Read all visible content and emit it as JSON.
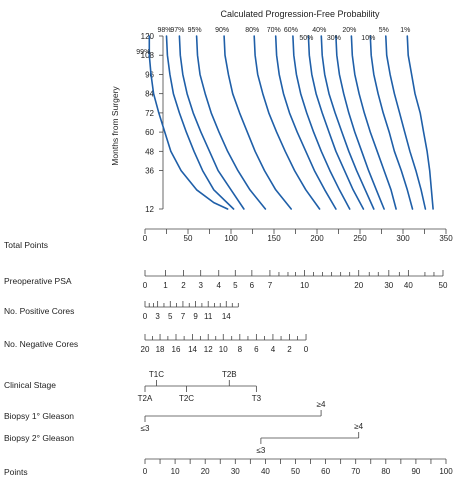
{
  "chart_data": {
    "type": "nomogram",
    "title": "Calculated Progression-Free Probability",
    "curve_color": "#1f5fa8",
    "line_color": "#444444",
    "text_color": "#222222",
    "months_axis": {
      "label": "Months from Surgery",
      "ticks": [
        12,
        36,
        48,
        60,
        72,
        84,
        96,
        108,
        120
      ]
    },
    "curves": [
      {
        "label": "99%",
        "points": [
          [
            120,
            5
          ],
          [
            108,
            5
          ],
          [
            96,
            7
          ],
          [
            84,
            10
          ],
          [
            72,
            16
          ],
          [
            60,
            23
          ],
          [
            48,
            30
          ],
          [
            36,
            42
          ],
          [
            24,
            60
          ],
          [
            16,
            80
          ],
          [
            12,
            96
          ]
        ]
      },
      {
        "label": "98%",
        "points": [
          [
            120,
            25
          ],
          [
            108,
            26
          ],
          [
            96,
            29
          ],
          [
            84,
            33
          ],
          [
            72,
            40
          ],
          [
            60,
            48
          ],
          [
            48,
            57
          ],
          [
            36,
            67
          ],
          [
            24,
            80
          ],
          [
            12,
            103
          ]
        ]
      },
      {
        "label": "97%",
        "points": [
          [
            120,
            40
          ],
          [
            108,
            41
          ],
          [
            96,
            44
          ],
          [
            84,
            49
          ],
          [
            72,
            56
          ],
          [
            60,
            65
          ],
          [
            48,
            75
          ],
          [
            36,
            85
          ],
          [
            24,
            100
          ],
          [
            12,
            115
          ]
        ]
      },
      {
        "label": "95%",
        "points": [
          [
            120,
            60
          ],
          [
            108,
            61
          ],
          [
            96,
            64
          ],
          [
            84,
            70
          ],
          [
            72,
            77
          ],
          [
            60,
            86
          ],
          [
            48,
            96
          ],
          [
            36,
            108
          ],
          [
            24,
            122
          ],
          [
            12,
            140
          ]
        ]
      },
      {
        "label": "90%",
        "points": [
          [
            120,
            92
          ],
          [
            108,
            93
          ],
          [
            96,
            97
          ],
          [
            84,
            102
          ],
          [
            72,
            110
          ],
          [
            60,
            119
          ],
          [
            48,
            128
          ],
          [
            36,
            139
          ],
          [
            24,
            152
          ],
          [
            12,
            170
          ]
        ]
      },
      {
        "label": "80%",
        "points": [
          [
            120,
            127
          ],
          [
            108,
            128
          ],
          [
            96,
            131
          ],
          [
            84,
            137
          ],
          [
            72,
            144
          ],
          [
            60,
            153
          ],
          [
            48,
            163
          ],
          [
            36,
            174
          ],
          [
            24,
            187
          ],
          [
            12,
            203
          ]
        ]
      },
      {
        "label": "70%",
        "points": [
          [
            120,
            152
          ],
          [
            108,
            153
          ],
          [
            96,
            156
          ],
          [
            84,
            161
          ],
          [
            72,
            168
          ],
          [
            60,
            177
          ],
          [
            48,
            187
          ],
          [
            36,
            197
          ],
          [
            24,
            209
          ],
          [
            12,
            222
          ]
        ]
      },
      {
        "label": "60%",
        "points": [
          [
            120,
            172
          ],
          [
            108,
            173
          ],
          [
            96,
            176
          ],
          [
            84,
            181
          ],
          [
            72,
            188
          ],
          [
            60,
            196
          ],
          [
            48,
            205
          ],
          [
            36,
            215
          ],
          [
            24,
            226
          ],
          [
            12,
            238
          ]
        ]
      },
      {
        "label": "50%",
        "points": [
          [
            120,
            190
          ],
          [
            108,
            191
          ],
          [
            96,
            194
          ],
          [
            84,
            199
          ],
          [
            72,
            206
          ],
          [
            60,
            214
          ],
          [
            48,
            222
          ],
          [
            36,
            232
          ],
          [
            24,
            242
          ],
          [
            12,
            254
          ]
        ]
      },
      {
        "label": "40%",
        "points": [
          [
            120,
            205
          ],
          [
            108,
            206
          ],
          [
            96,
            209
          ],
          [
            84,
            214
          ],
          [
            72,
            221
          ],
          [
            60,
            229
          ],
          [
            48,
            237
          ],
          [
            36,
            246
          ],
          [
            24,
            256
          ],
          [
            12,
            266
          ]
        ]
      },
      {
        "label": "30%",
        "points": [
          [
            120,
            222
          ],
          [
            108,
            223
          ],
          [
            96,
            226
          ],
          [
            84,
            231
          ],
          [
            72,
            237
          ],
          [
            60,
            244
          ],
          [
            48,
            252
          ],
          [
            36,
            260
          ],
          [
            24,
            269
          ],
          [
            12,
            278
          ]
        ]
      },
      {
        "label": "20%",
        "points": [
          [
            120,
            240
          ],
          [
            108,
            241
          ],
          [
            96,
            244
          ],
          [
            84,
            249
          ],
          [
            72,
            255
          ],
          [
            60,
            262
          ],
          [
            48,
            270
          ],
          [
            36,
            278
          ],
          [
            24,
            286
          ],
          [
            12,
            292
          ]
        ]
      },
      {
        "label": "10%",
        "points": [
          [
            120,
            262
          ],
          [
            108,
            263
          ],
          [
            96,
            266
          ],
          [
            84,
            271
          ],
          [
            72,
            277
          ],
          [
            60,
            284
          ],
          [
            48,
            290
          ],
          [
            36,
            298
          ],
          [
            24,
            305
          ],
          [
            12,
            311
          ]
        ]
      },
      {
        "label": "5%",
        "points": [
          [
            120,
            280
          ],
          [
            108,
            281
          ],
          [
            96,
            285
          ],
          [
            84,
            290
          ],
          [
            72,
            296
          ],
          [
            60,
            302
          ],
          [
            48,
            308
          ],
          [
            36,
            315
          ],
          [
            24,
            321
          ],
          [
            12,
            326
          ]
        ]
      },
      {
        "label": "1%",
        "points": [
          [
            120,
            305
          ],
          [
            108,
            306
          ],
          [
            96,
            310
          ],
          [
            84,
            314
          ],
          [
            72,
            320
          ],
          [
            60,
            324
          ],
          [
            48,
            328
          ],
          [
            36,
            331
          ],
          [
            24,
            333
          ],
          [
            12,
            335
          ]
        ]
      }
    ],
    "total_points": {
      "label": "Total Points",
      "range": [
        0,
        350
      ],
      "major_ticks": [
        0,
        50,
        100,
        150,
        200,
        250,
        300,
        350
      ],
      "minor_step": 25
    },
    "points": {
      "label": "Points",
      "range": [
        0,
        100
      ],
      "major_ticks": [
        0,
        10,
        20,
        30,
        40,
        50,
        60,
        70,
        80,
        90,
        100
      ],
      "minor_step": 5
    },
    "variables": [
      {
        "label": "Preoperative PSA",
        "axis_range": [
          0,
          50
        ],
        "ticks": [
          {
            "value": "0",
            "points": 0
          },
          {
            "value": "1",
            "points": 6.8
          },
          {
            "value": "2",
            "points": 12.8
          },
          {
            "value": "3",
            "points": 18.5
          },
          {
            "value": "4",
            "points": 24.5
          },
          {
            "value": "5",
            "points": 30.0
          },
          {
            "value": "6",
            "points": 35.5
          },
          {
            "value": "7",
            "points": 41.5
          },
          {
            "value": "10",
            "points": 53.0
          },
          {
            "value": "20",
            "points": 71.0
          },
          {
            "value": "30",
            "points": 81.0
          },
          {
            "value": "40",
            "points": 87.5
          },
          {
            "value": "50",
            "points": 99.0
          }
        ],
        "minor_ticks_points": [
          44.5,
          47.5,
          50.0,
          56.0,
          59.0,
          62.0,
          65.0,
          68.0,
          74.5,
          77.5,
          84.5,
          93.0,
          96.0
        ]
      },
      {
        "label": "No. Positive Cores",
        "axis_range": [
          0,
          15
        ],
        "ticks": [
          {
            "value": "0",
            "points": 0
          },
          {
            "value": "3",
            "points": 4.2
          },
          {
            "value": "5",
            "points": 8.4
          },
          {
            "value": "7",
            "points": 12.6
          },
          {
            "value": "9",
            "points": 16.8
          },
          {
            "value": "11",
            "points": 21.0
          },
          {
            "value": "14",
            "points": 27.0
          }
        ],
        "minor_ticks_points": [
          1.4,
          2.8,
          6.3,
          10.5,
          14.7,
          18.9,
          23.1,
          25.0,
          29.0,
          31.0
        ]
      },
      {
        "label": "No. Negative Cores",
        "axis_range": [
          20,
          0
        ],
        "ticks": [
          {
            "value": "20",
            "points": 0
          },
          {
            "value": "18",
            "points": 5.0
          },
          {
            "value": "16",
            "points": 10.3
          },
          {
            "value": "14",
            "points": 15.8
          },
          {
            "value": "12",
            "points": 21.0
          },
          {
            "value": "10",
            "points": 26.0
          },
          {
            "value": "8",
            "points": 31.5
          },
          {
            "value": "6",
            "points": 37.0
          },
          {
            "value": "4",
            "points": 42.5
          },
          {
            "value": "2",
            "points": 48.0
          },
          {
            "value": "0",
            "points": 53.5
          }
        ],
        "minor_ticks_points": [
          2.5,
          7.6,
          13.0,
          18.4,
          23.5,
          28.8,
          34.2,
          39.7,
          45.2,
          50.7
        ]
      },
      {
        "label": "Clinical Stage",
        "axis_range": [
          "T2A",
          "T3"
        ],
        "ticks": [
          {
            "value": "T2A",
            "points": 0,
            "side": "below"
          },
          {
            "value": "T1C",
            "points": 3.8,
            "side": "above"
          },
          {
            "value": "T2C",
            "points": 13.8,
            "side": "below"
          },
          {
            "value": "T2B",
            "points": 28.0,
            "side": "above"
          },
          {
            "value": "T3",
            "points": 37.0,
            "side": "below"
          }
        ]
      },
      {
        "label": "Biopsy 1° Gleason",
        "axis_range": [
          "≤3",
          "≥4"
        ],
        "ticks": [
          {
            "value": "≤3",
            "points": 0,
            "side": "below"
          },
          {
            "value": "≥4",
            "points": 58.5,
            "side": "above"
          }
        ]
      },
      {
        "label": "Biopsy 2° Gleason",
        "axis_range": [
          "≤3",
          "≥4"
        ],
        "ticks": [
          {
            "value": "≤3",
            "points": 38.5,
            "side": "below"
          },
          {
            "value": "≥4",
            "points": 71.0,
            "side": "above"
          }
        ]
      }
    ]
  }
}
